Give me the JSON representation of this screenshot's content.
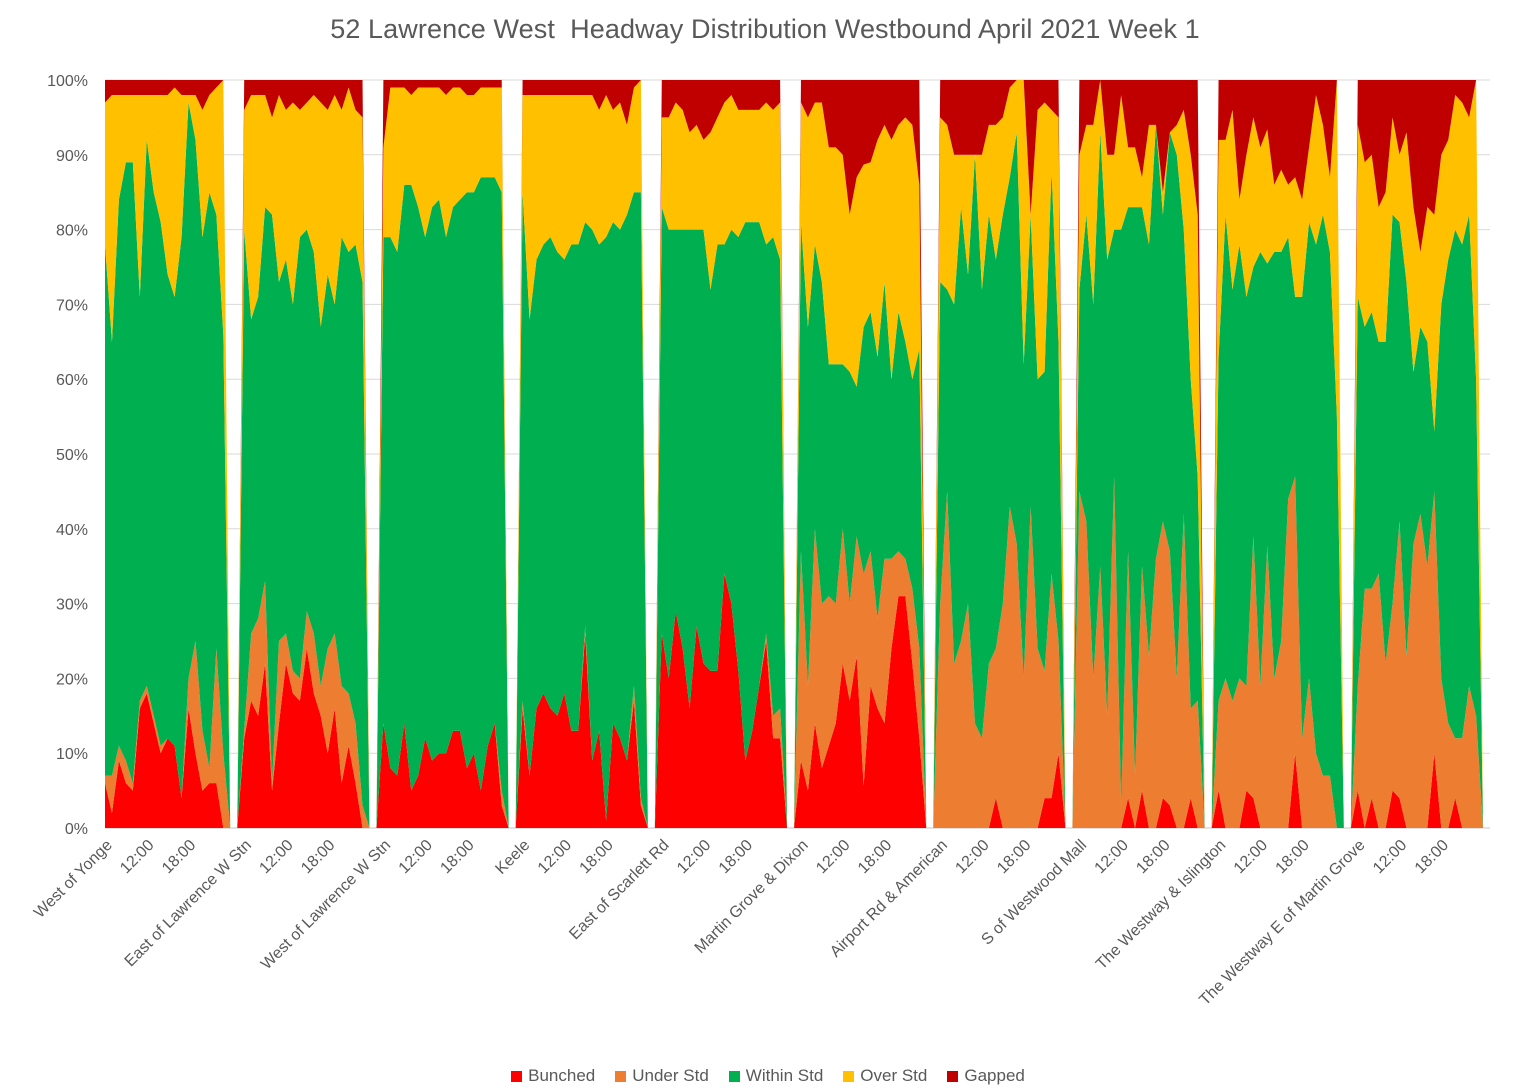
{
  "chart_data": {
    "type": "area",
    "stacked": "percent",
    "title": "52 Lawrence West  Headway Distribution Westbound April 2021 Week 1",
    "xlabel": "",
    "ylabel": "",
    "ylim": [
      0,
      100
    ],
    "yticks": [
      "0%",
      "10%",
      "20%",
      "30%",
      "40%",
      "50%",
      "60%",
      "70%",
      "80%",
      "90%",
      "100%"
    ],
    "grid": true,
    "legend_position": "bottom",
    "series_names": [
      "Bunched",
      "Under Std",
      "Within Std",
      "Over Std",
      "Gapped"
    ],
    "colors": {
      "Bunched": "#ff0000",
      "Under Std": "#ed7d31",
      "Within Std": "#00b050",
      "Over Std": "#ffc000",
      "Gapped": "#c00000"
    },
    "groups": [
      {
        "stop": "West of Yonge",
        "time_labels": [
          "12:00",
          "18:00"
        ],
        "bunched": [
          6,
          2,
          9,
          6,
          5,
          16,
          18,
          14,
          10,
          12,
          11,
          4,
          16,
          10,
          5,
          6,
          6,
          0,
          0
        ],
        "under": [
          1,
          5,
          2,
          3,
          1,
          1,
          1,
          1,
          1,
          0,
          0,
          0,
          4,
          15,
          8,
          2,
          18,
          10,
          0
        ],
        "within": [
          71,
          58,
          73,
          80,
          83,
          54,
          73,
          70,
          70,
          62,
          60,
          75,
          77,
          67,
          66,
          77,
          58,
          56,
          0
        ],
        "over": [
          19,
          33,
          14,
          9,
          9,
          27,
          6,
          13,
          17,
          24,
          28,
          19,
          1,
          6,
          17,
          13,
          17,
          34,
          0
        ],
        "gapped": [
          3,
          2,
          2,
          2,
          2,
          2,
          2,
          2,
          2,
          2,
          1,
          2,
          2,
          2,
          4,
          2,
          1,
          0,
          0
        ]
      },
      {
        "stop": "East of Lawrence W Stn",
        "time_labels": [
          "12:00",
          "18:00"
        ],
        "bunched": [
          12,
          17,
          15,
          22,
          5,
          14,
          22,
          18,
          17,
          24,
          18,
          15,
          10,
          16,
          6,
          11,
          6,
          0,
          0
        ],
        "under": [
          1,
          9,
          13,
          11,
          1,
          11,
          4,
          3,
          3,
          5,
          8,
          4,
          14,
          10,
          13,
          7,
          8,
          3,
          0
        ],
        "within": [
          67,
          42,
          43,
          50,
          76,
          48,
          50,
          49,
          59,
          51,
          51,
          48,
          50,
          44,
          60,
          59,
          64,
          70,
          0
        ],
        "over": [
          16,
          30,
          27,
          15,
          13,
          25,
          20,
          27,
          17,
          17,
          21,
          30,
          22,
          28,
          17,
          22,
          18,
          22,
          0
        ],
        "gapped": [
          4,
          2,
          2,
          2,
          5,
          2,
          4,
          3,
          4,
          3,
          2,
          3,
          4,
          2,
          4,
          1,
          4,
          5,
          0
        ]
      },
      {
        "stop": "West of Lawrence W Stn",
        "time_labels": [
          "12:00",
          "18:00"
        ],
        "bunched": [
          14,
          8,
          7,
          14,
          5,
          7,
          12,
          9,
          10,
          10,
          13,
          13,
          8,
          10,
          5,
          11,
          14,
          3,
          0
        ],
        "under": [
          0,
          0,
          0,
          0,
          0,
          0,
          0,
          0,
          0,
          0,
          0,
          0,
          0,
          0,
          0,
          0,
          0,
          2,
          0
        ],
        "within": [
          65,
          71,
          70,
          72,
          81,
          76,
          67,
          74,
          74,
          69,
          70,
          71,
          77,
          75,
          82,
          76,
          73,
          80,
          0
        ],
        "over": [
          12,
          20,
          22,
          13,
          12,
          16,
          20,
          16,
          15,
          19,
          16,
          15,
          13,
          13,
          12,
          12,
          12,
          14,
          0
        ],
        "gapped": [
          9,
          1,
          1,
          1,
          2,
          1,
          1,
          1,
          1,
          2,
          1,
          1,
          2,
          2,
          1,
          1,
          1,
          1,
          0
        ]
      },
      {
        "stop": "Keele",
        "time_labels": [
          "12:00",
          "18:00"
        ],
        "bunched": [
          16,
          7,
          16,
          18,
          16,
          15,
          18,
          13,
          13,
          26,
          9,
          13,
          1,
          14,
          12,
          9,
          17,
          3,
          0
        ],
        "under": [
          1,
          0,
          0,
          0,
          0,
          0,
          0,
          0,
          0,
          1,
          0,
          0,
          0,
          0,
          0,
          0,
          2,
          1,
          0
        ],
        "within": [
          68,
          61,
          60,
          60,
          63,
          62,
          58,
          65,
          65,
          54,
          71,
          65,
          78,
          67,
          68,
          73,
          66,
          81,
          0
        ],
        "over": [
          13,
          30,
          22,
          20,
          19,
          21,
          22,
          20,
          20,
          17,
          18,
          18,
          19,
          15,
          17,
          12,
          14,
          15,
          0
        ],
        "gapped": [
          2,
          2,
          2,
          2,
          2,
          2,
          2,
          2,
          2,
          2,
          2,
          4,
          2,
          4,
          3,
          6,
          1,
          0,
          0
        ]
      },
      {
        "stop": "East of Scarlett Rd",
        "time_labels": [
          "12:00",
          "18:00"
        ],
        "bunched": [
          26,
          20,
          29,
          24,
          16,
          27,
          22,
          21,
          21,
          34,
          30,
          21,
          9,
          13,
          19,
          25,
          12,
          12,
          0
        ],
        "under": [
          0,
          0,
          0,
          0,
          0,
          0,
          0,
          0,
          0,
          0,
          0,
          0,
          0,
          0,
          0,
          1,
          3,
          4,
          0
        ],
        "within": [
          57,
          60,
          51,
          56,
          64,
          53,
          58,
          51,
          57,
          44,
          50,
          58,
          72,
          68,
          62,
          52,
          64,
          60,
          0
        ],
        "over": [
          12,
          15,
          17,
          16,
          13,
          14,
          12,
          21,
          17,
          19,
          18,
          17,
          15,
          15,
          15,
          19,
          17,
          21,
          0
        ],
        "gapped": [
          5,
          5,
          3,
          4,
          7,
          6,
          8,
          7,
          5,
          3,
          2,
          4,
          4,
          4,
          4,
          3,
          4,
          3,
          0
        ]
      },
      {
        "stop": "Martin Grove & Dixon",
        "time_labels": [
          "12:00",
          "18:00"
        ],
        "bunched": [
          9,
          5,
          14,
          8,
          11,
          14,
          22,
          17,
          23,
          6,
          19,
          16,
          14,
          24,
          31,
          31,
          22,
          12,
          0
        ],
        "under": [
          28,
          14,
          26,
          22,
          20,
          16,
          18,
          13,
          16,
          30,
          18,
          12,
          22,
          12,
          6,
          5,
          10,
          12,
          0
        ],
        "within": [
          44,
          48,
          38,
          43,
          31,
          32,
          22,
          31,
          20,
          35,
          32,
          35,
          37,
          24,
          32,
          29,
          28,
          40,
          0
        ],
        "over": [
          16,
          28,
          19,
          24,
          29,
          29,
          28,
          21,
          28,
          23,
          20,
          29,
          21,
          32,
          25,
          30,
          34,
          22,
          0
        ],
        "gapped": [
          3,
          5,
          3,
          3,
          9,
          9,
          10,
          18,
          13,
          12,
          11,
          8,
          6,
          8,
          6,
          5,
          6,
          14,
          0
        ]
      },
      {
        "stop": "Airport Rd & American",
        "time_labels": [
          "12:00",
          "18:00"
        ],
        "bunched": [
          0,
          0,
          0,
          0,
          0,
          0,
          0,
          0,
          4,
          0,
          0,
          0,
          0,
          0,
          0,
          4,
          4,
          10,
          0
        ],
        "under": [
          30,
          45,
          22,
          25,
          30,
          14,
          12,
          22,
          20,
          30,
          43,
          38,
          20,
          43,
          24,
          17,
          30,
          15,
          0
        ],
        "within": [
          43,
          27,
          48,
          58,
          44,
          76,
          60,
          60,
          52,
          52,
          44,
          55,
          42,
          39,
          36,
          40,
          54,
          40,
          0
        ],
        "over": [
          22,
          22,
          20,
          7,
          16,
          0,
          18,
          12,
          18,
          13,
          12,
          7,
          38,
          0,
          36,
          36,
          8,
          30,
          0
        ],
        "gapped": [
          5,
          6,
          10,
          10,
          10,
          10,
          10,
          6,
          6,
          5,
          1,
          0,
          0,
          18,
          4,
          3,
          4,
          5,
          0
        ]
      },
      {
        "stop": "S of Westwood Mall",
        "time_labels": [
          "12:00",
          "18:00"
        ],
        "bunched": [
          0,
          0,
          0,
          0,
          0,
          0,
          0,
          4,
          0,
          5,
          0,
          0,
          4,
          3,
          0,
          0,
          4,
          0,
          0
        ],
        "under": [
          45,
          41,
          20,
          35,
          15,
          47,
          3,
          33,
          7,
          30,
          23,
          36,
          37,
          34,
          20,
          42,
          12,
          17,
          0
        ],
        "within": [
          27,
          41,
          50,
          58,
          61,
          33,
          77,
          46,
          76,
          48,
          55,
          58,
          41,
          56,
          70,
          38,
          44,
          30,
          0
        ],
        "over": [
          18,
          12,
          24,
          7,
          14,
          10,
          18,
          8,
          8,
          4,
          16,
          0,
          3,
          0,
          4,
          16,
          30,
          35,
          0
        ],
        "gapped": [
          10,
          6,
          6,
          0,
          10,
          10,
          2,
          9,
          9,
          13,
          6,
          6,
          15,
          7,
          6,
          4,
          10,
          18,
          0
        ]
      },
      {
        "stop": "The Westway & Islington",
        "time_labels": [
          "12:00",
          "18:00"
        ],
        "bunched": [
          5,
          0,
          0,
          0,
          5,
          4,
          0,
          0,
          0,
          0,
          0,
          10,
          0,
          0,
          0,
          0,
          0,
          0,
          0
        ],
        "under": [
          12,
          20,
          17,
          20,
          14,
          35,
          19,
          40,
          20,
          25,
          44,
          37,
          12,
          20,
          10,
          7,
          7,
          0,
          0
        ],
        "within": [
          46,
          62,
          55,
          58,
          52,
          36,
          58,
          40,
          57,
          52,
          35,
          24,
          59,
          61,
          68,
          75,
          70,
          55,
          0
        ],
        "over": [
          29,
          10,
          24,
          6,
          19,
          20,
          14,
          19,
          9,
          11,
          7,
          16,
          13,
          10,
          20,
          12,
          10,
          45,
          0
        ],
        "gapped": [
          8,
          8,
          4,
          16,
          10,
          5,
          9,
          7,
          14,
          12,
          14,
          13,
          16,
          9,
          2,
          6,
          13,
          0,
          0
        ]
      },
      {
        "stop": "The Westway E of Martin Grove",
        "time_labels": [
          "12:00",
          "18:00"
        ],
        "bunched": [
          5,
          0,
          4,
          0,
          0,
          5,
          4,
          0,
          0,
          0,
          0,
          10,
          0,
          0,
          4,
          0,
          0,
          0,
          0
        ],
        "under": [
          14,
          32,
          28,
          34,
          22,
          25,
          37,
          23,
          38,
          42,
          35,
          35,
          20,
          14,
          8,
          12,
          19,
          15,
          0
        ],
        "within": [
          52,
          35,
          37,
          31,
          43,
          52,
          40,
          50,
          23,
          25,
          30,
          8,
          50,
          62,
          68,
          66,
          63,
          45,
          0
        ],
        "over": [
          23,
          22,
          21,
          18,
          20,
          13,
          9,
          20,
          22,
          10,
          18,
          29,
          20,
          16,
          18,
          19,
          13,
          40,
          0
        ],
        "gapped": [
          6,
          11,
          10,
          17,
          15,
          5,
          10,
          7,
          17,
          23,
          17,
          18,
          10,
          8,
          2,
          3,
          5,
          0,
          0
        ]
      }
    ]
  },
  "legend": {
    "items": [
      {
        "label": "Bunched",
        "color": "#ff0000"
      },
      {
        "label": "Under Std",
        "color": "#ed7d31"
      },
      {
        "label": "Within Std",
        "color": "#00b050"
      },
      {
        "label": "Over Std",
        "color": "#ffc000"
      },
      {
        "label": "Gapped",
        "color": "#c00000"
      }
    ]
  }
}
